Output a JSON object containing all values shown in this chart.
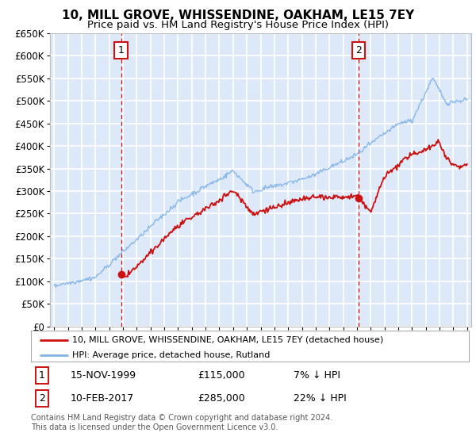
{
  "title": "10, MILL GROVE, WHISSENDINE, OAKHAM, LE15 7EY",
  "subtitle": "Price paid vs. HM Land Registry's House Price Index (HPI)",
  "legend_line1": "10, MILL GROVE, WHISSENDINE, OAKHAM, LE15 7EY (detached house)",
  "legend_line2": "HPI: Average price, detached house, Rutland",
  "sale1_date": "15-NOV-1999",
  "sale1_price": 115000,
  "sale1_label": "7% ↓ HPI",
  "sale2_date": "10-FEB-2017",
  "sale2_price": 285000,
  "sale2_label": "22% ↓ HPI",
  "footer": "Contains HM Land Registry data © Crown copyright and database right 2024.\nThis data is licensed under the Open Government Licence v3.0.",
  "xmin": 1994.7,
  "xmax": 2025.3,
  "ymin": 0,
  "ymax": 650000,
  "background_color": "#dde8f8",
  "grid_color": "#ffffff",
  "hpi_line_color": "#7fb3e8",
  "price_line_color": "#cc1111",
  "marker_box_color": "#cc1111",
  "sale1_x": 1999.87,
  "sale2_x": 2017.11
}
